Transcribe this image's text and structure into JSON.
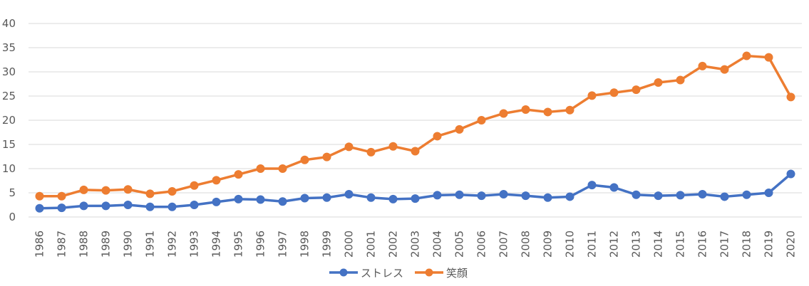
{
  "chart_data": {
    "type": "line",
    "title": "",
    "xlabel": "",
    "ylabel": "",
    "x": [
      "1986",
      "1987",
      "1988",
      "1989",
      "1990",
      "1991",
      "1992",
      "1993",
      "1994",
      "1995",
      "1996",
      "1997",
      "1998",
      "1999",
      "2000",
      "2001",
      "2002",
      "2003",
      "2004",
      "2005",
      "2006",
      "2007",
      "2008",
      "2009",
      "2010",
      "2011",
      "2012",
      "2013",
      "2014",
      "2015",
      "2016",
      "2017",
      "2018",
      "2019",
      "2020"
    ],
    "ylim": [
      0,
      40
    ],
    "yticks": [
      "0",
      "5",
      "10",
      "15",
      "20",
      "25",
      "30",
      "35",
      "40"
    ],
    "grid": true,
    "legend_position": "bottom",
    "series": [
      {
        "name": "ストレス",
        "color": "#4472c4",
        "values": [
          1.8,
          1.9,
          2.3,
          2.3,
          2.5,
          2.1,
          2.1,
          2.5,
          3.1,
          3.7,
          3.6,
          3.2,
          3.9,
          4.0,
          4.7,
          4.0,
          3.7,
          3.8,
          4.5,
          4.6,
          4.4,
          4.7,
          4.4,
          4.0,
          4.2,
          6.6,
          6.1,
          4.6,
          4.4,
          4.5,
          4.7,
          4.2,
          4.6,
          5.0,
          8.9
        ]
      },
      {
        "name": "笑顔",
        "color": "#ed7d31",
        "values": [
          4.3,
          4.3,
          5.6,
          5.5,
          5.7,
          4.8,
          5.3,
          6.5,
          7.6,
          8.8,
          10.0,
          10.0,
          11.8,
          12.4,
          14.5,
          13.4,
          14.6,
          13.6,
          16.7,
          18.1,
          20.0,
          21.4,
          22.2,
          21.7,
          22.1,
          25.1,
          25.7,
          26.3,
          27.8,
          28.3,
          31.2,
          30.5,
          33.3,
          33.0,
          24.8
        ]
      }
    ]
  }
}
